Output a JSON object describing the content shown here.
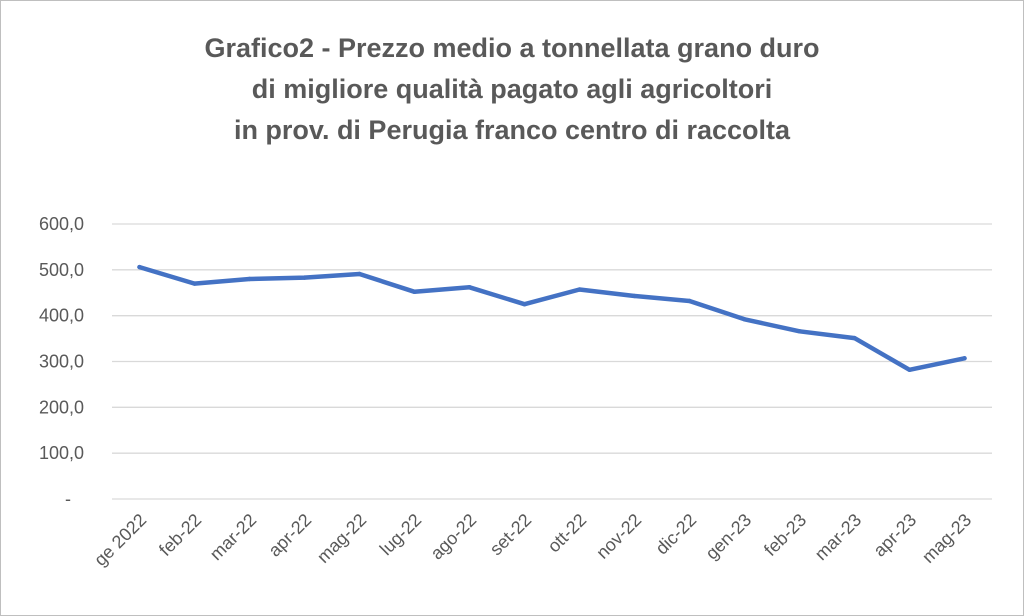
{
  "chart_data": {
    "type": "line",
    "title_lines": [
      "Grafico2 - Prezzo medio a tonnellata grano duro",
      "di migliore qualità pagato agli agricoltori",
      "in prov. di Perugia franco centro di raccolta"
    ],
    "categories": [
      "ge 2022",
      "feb-22",
      "mar-22",
      "apr-22",
      "mag-22",
      "lug-22",
      "ago-22",
      "set-22",
      "ott-22",
      "nov-22",
      "dic-22",
      "gen-23",
      "feb-23",
      "mar-23",
      "apr-23",
      "mag-23"
    ],
    "series": [
      {
        "values": [
          506,
          470,
          480,
          483,
          491,
          452,
          462,
          425,
          457,
          443,
          432,
          392,
          366,
          351,
          282,
          307
        ]
      }
    ],
    "y_ticks": [
      {
        "value": 0,
        "label": "-"
      },
      {
        "value": 100,
        "label": "100,0"
      },
      {
        "value": 200,
        "label": "200,0"
      },
      {
        "value": 300,
        "label": "300,0"
      },
      {
        "value": 400,
        "label": "400,0"
      },
      {
        "value": 500,
        "label": "500,0"
      },
      {
        "value": 600,
        "label": "600,0"
      }
    ],
    "ylim": [
      0,
      600
    ],
    "grid": true,
    "legend": false,
    "line_color": "#4472C4",
    "grid_color": "#d9d9d9"
  }
}
